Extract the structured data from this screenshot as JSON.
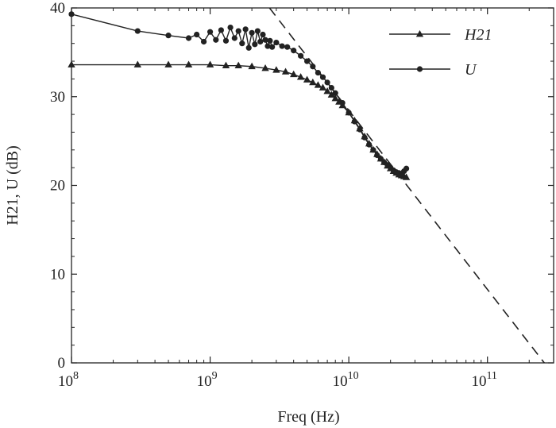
{
  "chart_data": {
    "type": "line",
    "xlabel": "Freq (Hz)",
    "ylabel": "H21, U (dB)",
    "xscale": "log",
    "xlim": [
      100000000,
      300000000000
    ],
    "ylim": [
      0,
      40
    ],
    "grid": false,
    "legend_position": "top-right",
    "xticks": [
      {
        "value": 100000000,
        "base": "10",
        "exp": "8"
      },
      {
        "value": 1000000000,
        "base": "10",
        "exp": "9"
      },
      {
        "value": 10000000000,
        "base": "10",
        "exp": "10"
      },
      {
        "value": 100000000000,
        "base": "10",
        "exp": "11"
      }
    ],
    "yticks": [
      0,
      10,
      20,
      30,
      40
    ],
    "series": [
      {
        "name": "H21",
        "marker": "triangle",
        "color": "#222222",
        "x": [
          100000000,
          300000000,
          500000000,
          700000000,
          1000000000,
          1300000000,
          1600000000,
          2000000000,
          2500000000,
          3000000000,
          3500000000,
          4000000000,
          4500000000,
          5000000000,
          5500000000,
          6000000000,
          6500000000,
          7000000000,
          7500000000,
          8000000000,
          8500000000,
          9000000000,
          10000000000,
          11000000000,
          12000000000,
          13000000000,
          14000000000,
          15000000000,
          16000000000,
          17000000000,
          18000000000,
          19000000000,
          20000000000,
          21000000000,
          22000000000,
          23000000000,
          24000000000,
          25000000000,
          26000000000
        ],
        "y": [
          33.6,
          33.6,
          33.6,
          33.6,
          33.6,
          33.5,
          33.5,
          33.4,
          33.2,
          33.0,
          32.8,
          32.5,
          32.2,
          31.9,
          31.6,
          31.3,
          31.0,
          30.6,
          30.2,
          29.8,
          29.4,
          29.0,
          28.2,
          27.3,
          26.4,
          25.5,
          24.7,
          24.0,
          23.5,
          23.0,
          22.6,
          22.2,
          21.9,
          21.6,
          21.4,
          21.2,
          21.1,
          21.0,
          20.9
        ]
      },
      {
        "name": "U",
        "marker": "circle",
        "color": "#222222",
        "x": [
          100000000,
          300000000,
          500000000,
          700000000,
          800000000,
          900000000,
          1000000000,
          1100000000,
          1200000000,
          1300000000,
          1400000000,
          1500000000,
          1600000000,
          1700000000,
          1800000000,
          1900000000,
          2000000000,
          2100000000,
          2200000000,
          2300000000,
          2400000000,
          2500000000,
          2600000000,
          2700000000,
          2800000000,
          3000000000,
          3300000000,
          3600000000,
          4000000000,
          4500000000,
          5000000000,
          5500000000,
          6000000000,
          6500000000,
          7000000000,
          7500000000,
          8000000000,
          9000000000,
          10000000000,
          11000000000,
          12000000000,
          13000000000,
          14000000000,
          15000000000,
          16000000000,
          17000000000,
          18000000000,
          19000000000,
          20000000000,
          21000000000,
          22000000000,
          23000000000,
          24000000000,
          25000000000,
          26000000000
        ],
        "y": [
          39.3,
          37.4,
          36.9,
          36.6,
          37.0,
          36.2,
          37.3,
          36.4,
          37.5,
          36.3,
          37.8,
          36.6,
          37.4,
          36.0,
          37.6,
          35.5,
          37.2,
          35.9,
          37.4,
          36.2,
          37.0,
          36.4,
          35.7,
          36.3,
          35.6,
          36.1,
          35.7,
          35.6,
          35.2,
          34.6,
          34.0,
          33.4,
          32.7,
          32.2,
          31.6,
          31.0,
          30.4,
          29.3,
          28.2,
          27.2,
          26.3,
          25.4,
          24.6,
          24.0,
          23.4,
          23.0,
          22.6,
          22.3,
          22.0,
          21.7,
          21.5,
          21.4,
          21.3,
          21.6,
          21.9
        ]
      }
    ],
    "reference_line": {
      "style": "dashed",
      "x": [
        2680000000,
        257000000000
      ],
      "y": [
        40,
        0
      ]
    }
  }
}
